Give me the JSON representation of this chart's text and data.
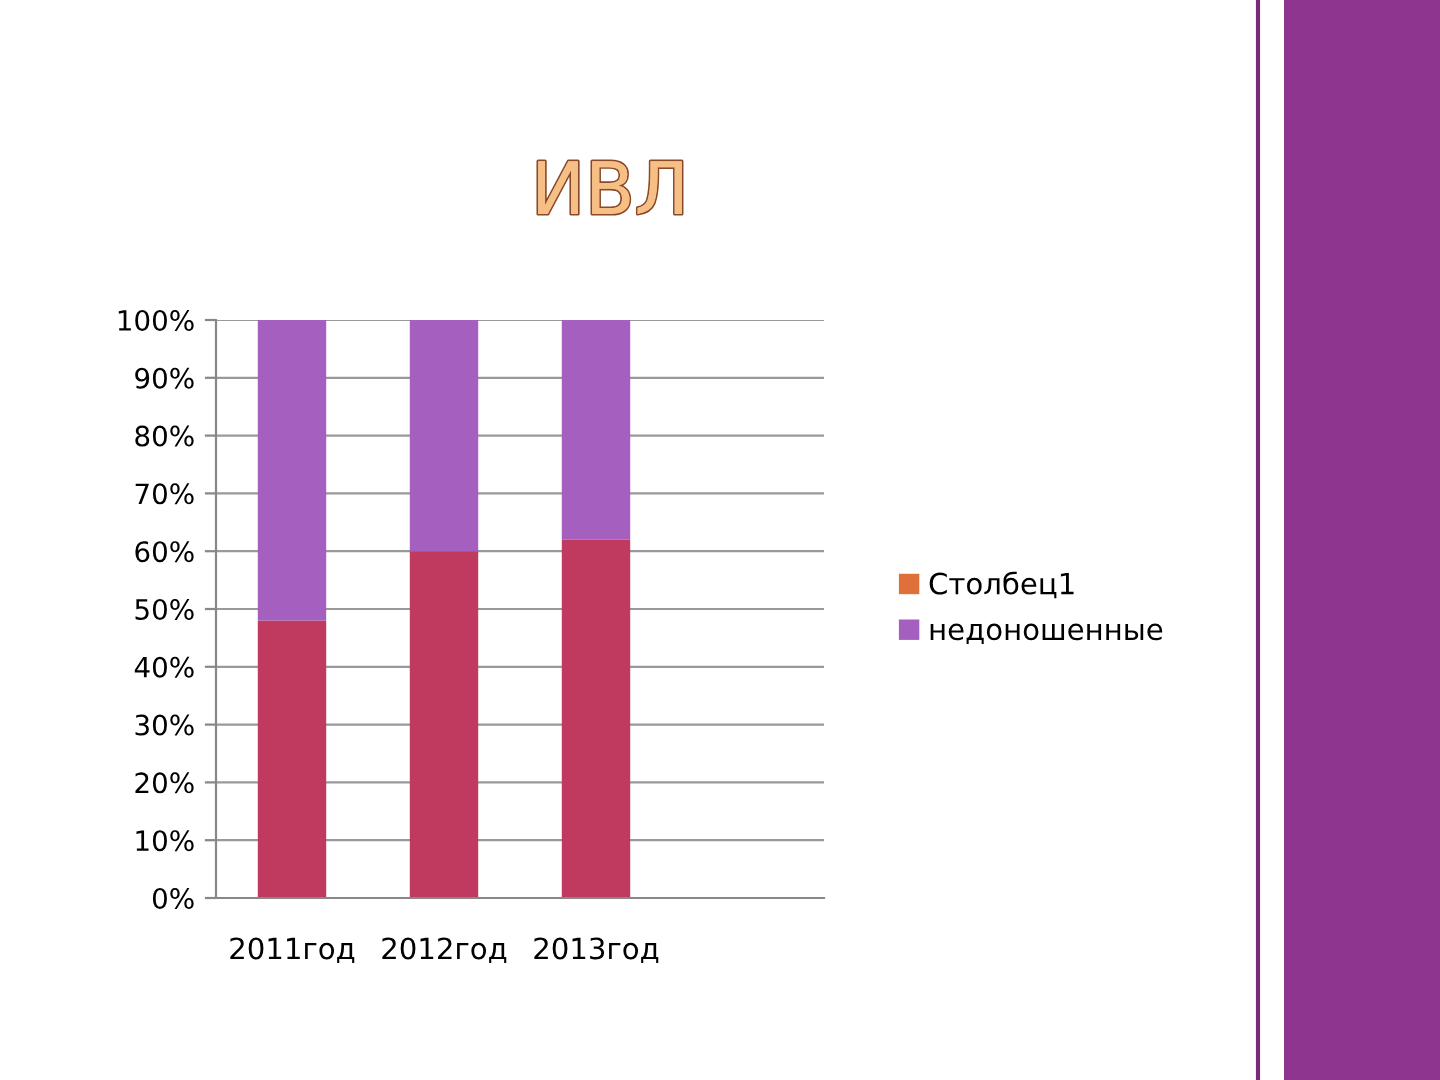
{
  "chart_data": {
    "type": "bar",
    "title": "ИВЛ",
    "stacked": true,
    "categories": [
      "2011год",
      "2012год",
      "2013год",
      null
    ],
    "series": [
      {
        "color": "#c0395f",
        "values": [
          48,
          60,
          62,
          null
        ]
      },
      {
        "name": "Столбец1",
        "color": "#e0703a",
        "values": [
          null,
          null,
          null,
          null
        ]
      },
      {
        "name": "недоношенные",
        "color": "#a45fbf",
        "values": [
          52,
          40,
          38,
          null
        ]
      }
    ],
    "ylim": [
      0,
      100
    ],
    "yticks": [
      {
        "value": 0,
        "label": "0%"
      },
      {
        "value": 10,
        "label": "10%"
      },
      {
        "value": 20,
        "label": "20%"
      },
      {
        "value": 30,
        "label": "30%"
      },
      {
        "value": 40,
        "label": "40%"
      },
      {
        "value": 50,
        "label": "50%"
      },
      {
        "value": 60,
        "label": "60%"
      },
      {
        "value": 70,
        "label": "70%"
      },
      {
        "value": 80,
        "label": "80%"
      },
      {
        "value": 90,
        "label": "90%"
      },
      {
        "value": 100,
        "label": "100%"
      }
    ],
    "grid": "y",
    "legend": "right"
  }
}
